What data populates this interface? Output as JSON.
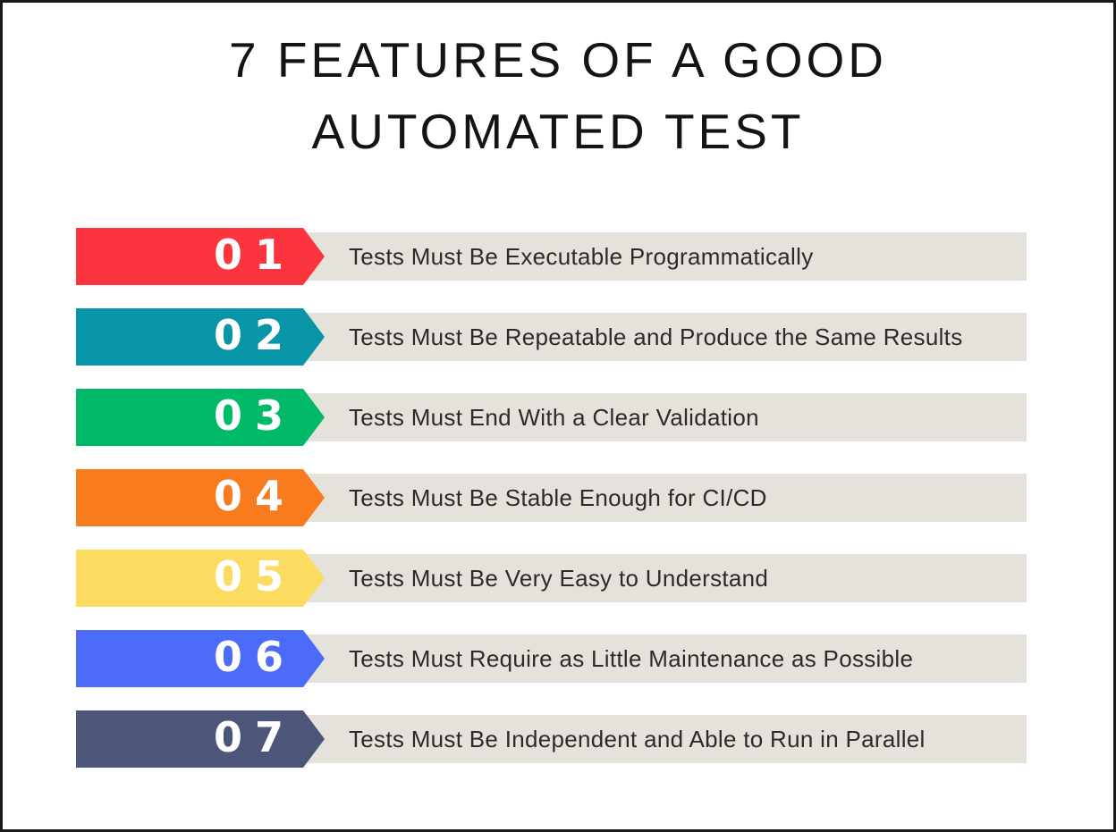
{
  "theme": {
    "page_bg": "#ffffff",
    "border_color": "#1a1a1a",
    "track_color": "#e5e1db",
    "title_color": "#141414",
    "label_color": "#2b2b2b",
    "number_color": "#ffffff"
  },
  "title": {
    "line1": "7 FEATURES OF A GOOD",
    "line2": "AUTOMATED TEST"
  },
  "features": [
    {
      "number": "01",
      "label": "Tests Must Be Executable Programmatically",
      "color": "#fb343e"
    },
    {
      "number": "02",
      "label": "Tests Must Be Repeatable and Produce the Same Results",
      "color": "#0795a7"
    },
    {
      "number": "03",
      "label": "Tests Must End With a Clear Validation",
      "color": "#01ba68"
    },
    {
      "number": "04",
      "label": "Tests Must Be Stable Enough for CI/CD",
      "color": "#f87b1e"
    },
    {
      "number": "05",
      "label": "Tests Must Be Very Easy to Understand",
      "color": "#fbdb60"
    },
    {
      "number": "06",
      "label": "Tests Must Require as Little Maintenance as Possible",
      "color": "#4c6bf8"
    },
    {
      "number": "07",
      "label": "Tests Must Be Independent and Able to Run in Parallel",
      "color": "#4c5679"
    }
  ]
}
